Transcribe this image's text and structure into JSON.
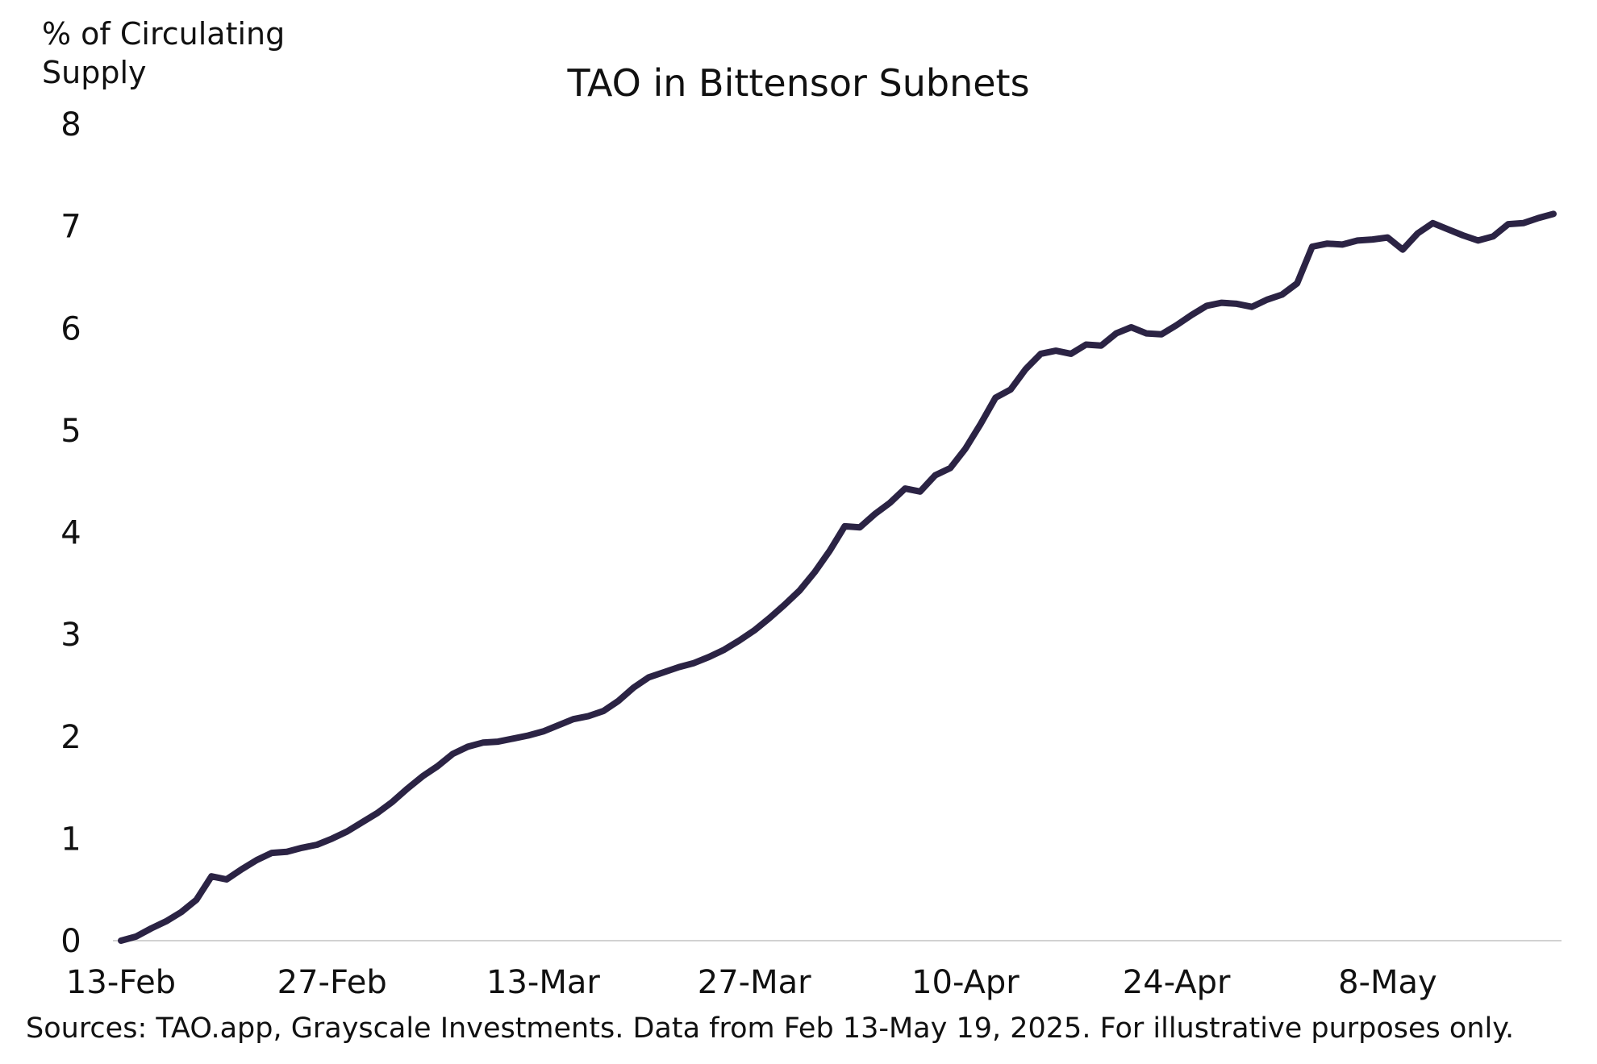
{
  "chart_data": {
    "type": "line",
    "title": "TAO in Bittensor Subnets",
    "ylabel": "% of Circulating Supply",
    "xlabel": "",
    "ylim": [
      0,
      8
    ],
    "yticks": [
      "0",
      "1",
      "2",
      "3",
      "4",
      "5",
      "6",
      "7",
      "8"
    ],
    "xlim": [
      "2025-02-13",
      "2025-05-19"
    ],
    "xtick_labels": [
      {
        "label": "13-Feb",
        "date": "2025-02-13"
      },
      {
        "label": "27-Feb",
        "date": "2025-02-27"
      },
      {
        "label": "13-Mar",
        "date": "2025-03-13"
      },
      {
        "label": "27-Mar",
        "date": "2025-03-27"
      },
      {
        "label": "10-Apr",
        "date": "2025-04-10"
      },
      {
        "label": "24-Apr",
        "date": "2025-04-24"
      },
      {
        "label": "8-May",
        "date": "2025-05-08"
      }
    ],
    "grid": false,
    "legend": "none",
    "line_color": "#2b2344",
    "series": [
      {
        "points": [
          [
            "2025-02-13",
            0.0
          ],
          [
            "2025-02-14",
            0.04
          ],
          [
            "2025-02-15",
            0.12
          ],
          [
            "2025-02-16",
            0.19
          ],
          [
            "2025-02-17",
            0.28
          ],
          [
            "2025-02-18",
            0.4
          ],
          [
            "2025-02-19",
            0.63
          ],
          [
            "2025-02-20",
            0.6
          ],
          [
            "2025-02-21",
            0.7
          ],
          [
            "2025-02-22",
            0.79
          ],
          [
            "2025-02-23",
            0.86
          ],
          [
            "2025-02-24",
            0.87
          ],
          [
            "2025-02-25",
            0.91
          ],
          [
            "2025-02-26",
            0.94
          ],
          [
            "2025-02-27",
            1.0
          ],
          [
            "2025-02-28",
            1.07
          ],
          [
            "2025-03-01",
            1.16
          ],
          [
            "2025-03-02",
            1.25
          ],
          [
            "2025-03-03",
            1.36
          ],
          [
            "2025-03-04",
            1.49
          ],
          [
            "2025-03-05",
            1.61
          ],
          [
            "2025-03-06",
            1.71
          ],
          [
            "2025-03-07",
            1.83
          ],
          [
            "2025-03-08",
            1.9
          ],
          [
            "2025-03-09",
            1.94
          ],
          [
            "2025-03-10",
            1.95
          ],
          [
            "2025-03-11",
            1.98
          ],
          [
            "2025-03-12",
            2.01
          ],
          [
            "2025-03-13",
            2.05
          ],
          [
            "2025-03-14",
            2.11
          ],
          [
            "2025-03-15",
            2.17
          ],
          [
            "2025-03-16",
            2.2
          ],
          [
            "2025-03-17",
            2.25
          ],
          [
            "2025-03-18",
            2.35
          ],
          [
            "2025-03-19",
            2.48
          ],
          [
            "2025-03-20",
            2.58
          ],
          [
            "2025-03-21",
            2.63
          ],
          [
            "2025-03-22",
            2.68
          ],
          [
            "2025-03-23",
            2.72
          ],
          [
            "2025-03-24",
            2.78
          ],
          [
            "2025-03-25",
            2.85
          ],
          [
            "2025-03-26",
            2.94
          ],
          [
            "2025-03-27",
            3.04
          ],
          [
            "2025-03-28",
            3.16
          ],
          [
            "2025-03-29",
            3.29
          ],
          [
            "2025-03-30",
            3.43
          ],
          [
            "2025-03-31",
            3.61
          ],
          [
            "2025-04-01",
            3.82
          ],
          [
            "2025-04-02",
            4.06
          ],
          [
            "2025-04-03",
            4.05
          ],
          [
            "2025-04-04",
            4.18
          ],
          [
            "2025-04-05",
            4.29
          ],
          [
            "2025-04-06",
            4.43
          ],
          [
            "2025-04-07",
            4.4
          ],
          [
            "2025-04-08",
            4.56
          ],
          [
            "2025-04-09",
            4.63
          ],
          [
            "2025-04-10",
            4.82
          ],
          [
            "2025-04-11",
            5.06
          ],
          [
            "2025-04-12",
            5.32
          ],
          [
            "2025-04-13",
            5.4
          ],
          [
            "2025-04-14",
            5.6
          ],
          [
            "2025-04-15",
            5.75
          ],
          [
            "2025-04-16",
            5.78
          ],
          [
            "2025-04-17",
            5.75
          ],
          [
            "2025-04-18",
            5.84
          ],
          [
            "2025-04-19",
            5.83
          ],
          [
            "2025-04-20",
            5.95
          ],
          [
            "2025-04-21",
            6.01
          ],
          [
            "2025-04-22",
            5.95
          ],
          [
            "2025-04-23",
            5.94
          ],
          [
            "2025-04-24",
            6.03
          ],
          [
            "2025-04-25",
            6.13
          ],
          [
            "2025-04-26",
            6.22
          ],
          [
            "2025-04-27",
            6.25
          ],
          [
            "2025-04-28",
            6.24
          ],
          [
            "2025-04-29",
            6.21
          ],
          [
            "2025-04-30",
            6.28
          ],
          [
            "2025-05-01",
            6.33
          ],
          [
            "2025-05-02",
            6.44
          ],
          [
            "2025-05-03",
            6.8
          ],
          [
            "2025-05-04",
            6.83
          ],
          [
            "2025-05-05",
            6.82
          ],
          [
            "2025-05-06",
            6.86
          ],
          [
            "2025-05-07",
            6.87
          ],
          [
            "2025-05-08",
            6.89
          ],
          [
            "2025-05-09",
            6.77
          ],
          [
            "2025-05-10",
            6.93
          ],
          [
            "2025-05-11",
            7.03
          ],
          [
            "2025-05-12",
            6.97
          ],
          [
            "2025-05-13",
            6.91
          ],
          [
            "2025-05-14",
            6.86
          ],
          [
            "2025-05-15",
            6.9
          ],
          [
            "2025-05-16",
            7.02
          ],
          [
            "2025-05-17",
            7.03
          ],
          [
            "2025-05-18",
            7.08
          ],
          [
            "2025-05-19",
            7.12
          ]
        ]
      }
    ]
  },
  "source_note": "Sources: TAO.app, Grayscale Investments. Data from Feb 13-May 19, 2025. For illustrative purposes only."
}
